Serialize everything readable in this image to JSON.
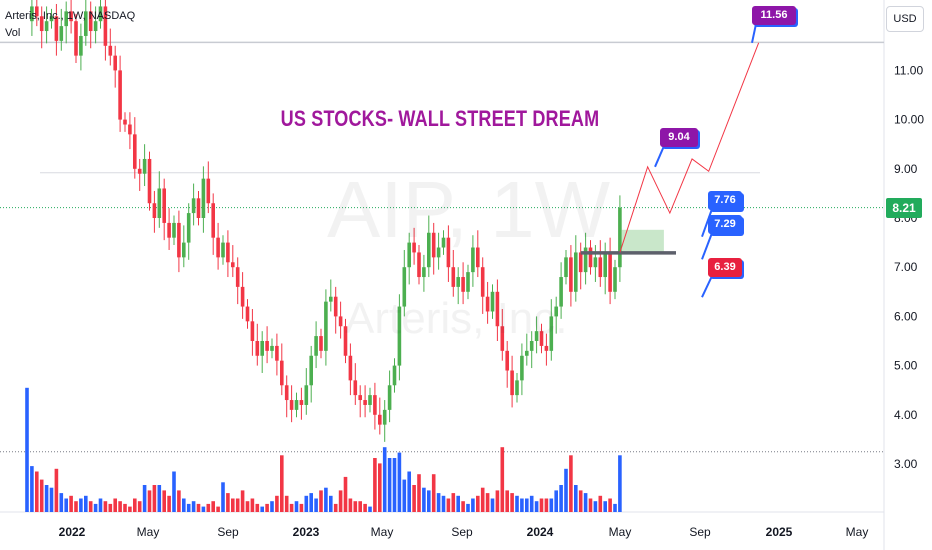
{
  "header": {
    "title": "Arteris, Inc., 1W, NASDAQ",
    "volume_label": "Vol"
  },
  "currency_button": "USD",
  "headline": "US STOCKS- WALL STREET DREAM",
  "watermark": {
    "ticker": "AIP, 1W",
    "name": "Arteris, Inc."
  },
  "last_price": "8.21",
  "colors": {
    "up": "#4caf50",
    "down": "#f23645",
    "volume_up": "#2962ff",
    "volume_down": "#f23645",
    "headline": "#a0189c",
    "price_tag": "#22ab5c",
    "target_box": "#8e16a8",
    "level_box": "#2962ff",
    "stop_box": "#e8203f",
    "projection": "#f23645"
  },
  "chart_data": {
    "type": "candlestick",
    "symbol": "AIP",
    "interval": "1W",
    "y_axis_ticks": [
      "3.00",
      "4.00",
      "5.00",
      "6.00",
      "7.00",
      "8.00",
      "9.00",
      "10.00",
      "11.00"
    ],
    "x_axis_ticks": [
      "2022",
      "May",
      "Sep",
      "2023",
      "May",
      "Sep",
      "2024",
      "May",
      "Sep",
      "2025",
      "May"
    ],
    "ylim": [
      2.0,
      12.3
    ],
    "price_path": [
      [
        0,
        12.0
      ],
      [
        1,
        12.3
      ],
      [
        2,
        12.1
      ],
      [
        3,
        11.8
      ],
      [
        4,
        12.0
      ],
      [
        5,
        12.1
      ],
      [
        6,
        11.6
      ],
      [
        7,
        11.9
      ],
      [
        8,
        12.2
      ],
      [
        9,
        12.0
      ],
      [
        10,
        11.3
      ],
      [
        11,
        11.7
      ],
      [
        12,
        12.2
      ],
      [
        13,
        11.8
      ],
      [
        14,
        12.0
      ],
      [
        15,
        12.3
      ],
      [
        16,
        11.5
      ],
      [
        17,
        11.3
      ],
      [
        18,
        11.0
      ],
      [
        19,
        10.0
      ],
      [
        20,
        9.9
      ],
      [
        21,
        9.7
      ],
      [
        22,
        9.0
      ],
      [
        23,
        8.9
      ],
      [
        24,
        9.2
      ],
      [
        25,
        8.3
      ],
      [
        26,
        8.0
      ],
      [
        27,
        8.6
      ],
      [
        28,
        7.9
      ],
      [
        29,
        7.6
      ],
      [
        30,
        7.9
      ],
      [
        31,
        7.2
      ],
      [
        32,
        7.5
      ],
      [
        33,
        8.1
      ],
      [
        34,
        8.4
      ],
      [
        35,
        8.0
      ],
      [
        36,
        8.8
      ],
      [
        37,
        8.3
      ],
      [
        38,
        7.6
      ],
      [
        39,
        7.2
      ],
      [
        40,
        7.5
      ],
      [
        41,
        7.1
      ],
      [
        42,
        7.0
      ],
      [
        43,
        6.6
      ],
      [
        44,
        6.2
      ],
      [
        45,
        5.9
      ],
      [
        46,
        5.5
      ],
      [
        47,
        5.2
      ],
      [
        48,
        5.5
      ],
      [
        49,
        5.3
      ],
      [
        50,
        5.4
      ],
      [
        51,
        5.1
      ],
      [
        52,
        4.6
      ],
      [
        53,
        4.3
      ],
      [
        54,
        4.1
      ],
      [
        55,
        4.3
      ],
      [
        56,
        4.2
      ],
      [
        57,
        4.6
      ],
      [
        58,
        5.2
      ],
      [
        59,
        5.6
      ],
      [
        60,
        5.3
      ],
      [
        61,
        6.3
      ],
      [
        62,
        6.4
      ],
      [
        63,
        6.0
      ],
      [
        64,
        5.8
      ],
      [
        65,
        5.2
      ],
      [
        66,
        4.7
      ],
      [
        67,
        4.4
      ],
      [
        68,
        4.3
      ],
      [
        69,
        4.2
      ],
      [
        70,
        4.4
      ],
      [
        71,
        4.0
      ],
      [
        72,
        3.8
      ],
      [
        73,
        4.1
      ],
      [
        74,
        4.6
      ],
      [
        75,
        5.0
      ],
      [
        76,
        6.2
      ],
      [
        77,
        7.0
      ],
      [
        78,
        7.5
      ],
      [
        79,
        7.3
      ],
      [
        80,
        6.8
      ],
      [
        81,
        7.0
      ],
      [
        82,
        7.7
      ],
      [
        83,
        7.2
      ],
      [
        84,
        7.4
      ],
      [
        85,
        7.6
      ],
      [
        86,
        7.0
      ],
      [
        87,
        6.6
      ],
      [
        88,
        6.8
      ],
      [
        89,
        6.5
      ],
      [
        90,
        6.9
      ],
      [
        91,
        7.4
      ],
      [
        92,
        7.0
      ],
      [
        93,
        6.4
      ],
      [
        94,
        6.1
      ],
      [
        95,
        6.5
      ],
      [
        96,
        5.8
      ],
      [
        97,
        5.3
      ],
      [
        98,
        4.9
      ],
      [
        99,
        4.4
      ],
      [
        100,
        4.7
      ],
      [
        101,
        5.2
      ],
      [
        102,
        5.3
      ],
      [
        103,
        5.5
      ],
      [
        104,
        5.7
      ],
      [
        105,
        5.4
      ],
      [
        106,
        5.3
      ],
      [
        107,
        6.0
      ],
      [
        108,
        6.2
      ],
      [
        109,
        6.8
      ],
      [
        110,
        7.2
      ],
      [
        111,
        6.5
      ],
      [
        112,
        7.3
      ],
      [
        113,
        6.9
      ],
      [
        114,
        7.4
      ],
      [
        115,
        7.0
      ],
      [
        116,
        7.2
      ],
      [
        117,
        6.8
      ],
      [
        118,
        7.3
      ],
      [
        119,
        6.5
      ],
      [
        120,
        7.0
      ],
      [
        121,
        8.21
      ]
    ],
    "volume": [
      4.6,
      1.7,
      1.5,
      1.2,
      1.0,
      0.9,
      1.6,
      0.7,
      0.5,
      0.6,
      0.4,
      0.5,
      0.6,
      0.4,
      0.3,
      0.5,
      0.4,
      0.3,
      0.5,
      0.4,
      0.3,
      0.2,
      0.5,
      0.4,
      1.0,
      0.8,
      1.0,
      1.0,
      0.8,
      0.6,
      1.5,
      0.8,
      0.5,
      0.3,
      0.4,
      0.3,
      0.2,
      0.3,
      0.4,
      0.2,
      1.1,
      0.7,
      0.5,
      0.5,
      0.8,
      0.4,
      0.5,
      0.3,
      0.2,
      0.3,
      0.4,
      0.6,
      2.1,
      0.6,
      0.3,
      0.4,
      0.3,
      0.6,
      0.7,
      0.5,
      0.8,
      0.9,
      0.6,
      0.3,
      0.8,
      1.3,
      0.5,
      0.4,
      0.4,
      0.3,
      0.2,
      2.0,
      1.8,
      2.4,
      2.0,
      2.0,
      2.2,
      1.2,
      1.5,
      1.0,
      1.4,
      0.9,
      0.8,
      1.4,
      0.7,
      0.6,
      0.5,
      0.7,
      0.6,
      0.4,
      0.3,
      0.5,
      0.6,
      0.9,
      0.7,
      0.5,
      0.8,
      2.4,
      0.8,
      0.7,
      0.6,
      0.5,
      0.5,
      0.6,
      0.4,
      0.5,
      0.5,
      0.5,
      0.8,
      1.0,
      1.6,
      2.1,
      1.0,
      0.8,
      0.7,
      0.5,
      0.4,
      0.6,
      0.4,
      0.5,
      0.3,
      2.1
    ],
    "annotations": [
      {
        "label": "11.56",
        "value": 11.56,
        "style": "target"
      },
      {
        "label": "9.04",
        "value": 9.04,
        "style": "target"
      },
      {
        "label": "7.76",
        "value": 7.76,
        "style": "level"
      },
      {
        "label": "7.29",
        "value": 7.29,
        "style": "level"
      },
      {
        "label": "6.39",
        "value": 6.39,
        "style": "stop"
      }
    ],
    "support_line": 7.29,
    "resistance_line": 11.56,
    "projection_path": [
      [
        121,
        7.3
      ],
      [
        126,
        9.04
      ],
      [
        130,
        8.1
      ],
      [
        134,
        9.2
      ],
      [
        137,
        8.95
      ],
      [
        146,
        11.56
      ]
    ]
  }
}
